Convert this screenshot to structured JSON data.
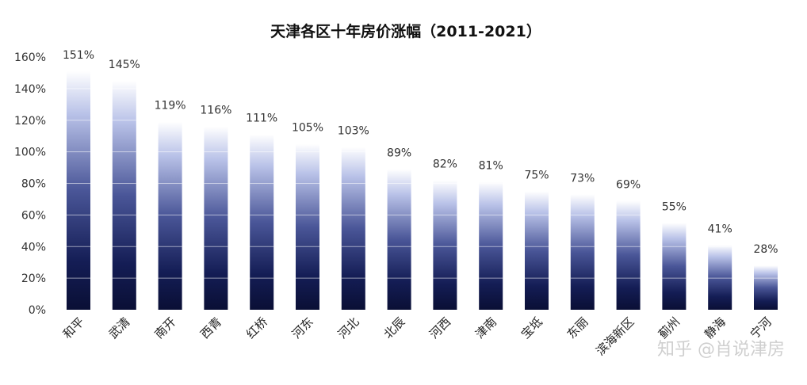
{
  "chart_data": {
    "type": "bar",
    "title": "天津各区十年房价涨幅（2011-2021）",
    "xlabel": "",
    "ylabel": "",
    "ylim": [
      0,
      160
    ],
    "yticks": [
      "0%",
      "20%",
      "40%",
      "60%",
      "80%",
      "100%",
      "120%",
      "140%",
      "160%"
    ],
    "grid": true,
    "categories": [
      "和平",
      "武清",
      "南开",
      "西青",
      "红桥",
      "河东",
      "河北",
      "北辰",
      "河西",
      "津南",
      "宝坻",
      "东丽",
      "滨海新区",
      "蓟州",
      "静海",
      "宁河"
    ],
    "values": [
      151,
      145,
      119,
      116,
      111,
      105,
      103,
      89,
      82,
      81,
      75,
      73,
      69,
      55,
      41,
      28
    ],
    "data_labels": [
      "151%",
      "145%",
      "119%",
      "116%",
      "111%",
      "105%",
      "103%",
      "89%",
      "82%",
      "81%",
      "75%",
      "73%",
      "69%",
      "55%",
      "41%",
      "28%"
    ],
    "colors": {
      "bar_top": "#ffffff",
      "bar_bottom": "#0a0f35"
    }
  },
  "watermark": "知乎 @肖说津房"
}
